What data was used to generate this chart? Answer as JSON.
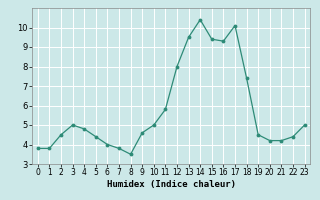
{
  "x": [
    0,
    1,
    2,
    3,
    4,
    5,
    6,
    7,
    8,
    9,
    10,
    11,
    12,
    13,
    14,
    15,
    16,
    17,
    18,
    19,
    20,
    21,
    22,
    23
  ],
  "y": [
    3.8,
    3.8,
    4.5,
    5.0,
    4.8,
    4.4,
    4.0,
    3.8,
    3.5,
    4.6,
    5.0,
    5.8,
    8.0,
    9.5,
    10.4,
    9.4,
    9.3,
    10.1,
    7.4,
    4.5,
    4.2,
    4.2,
    4.4,
    5.0
  ],
  "xlabel": "Humidex (Indice chaleur)",
  "xlim": [
    -0.5,
    23.5
  ],
  "ylim": [
    3,
    11
  ],
  "yticks": [
    3,
    4,
    5,
    6,
    7,
    8,
    9,
    10
  ],
  "xticks": [
    0,
    1,
    2,
    3,
    4,
    5,
    6,
    7,
    8,
    9,
    10,
    11,
    12,
    13,
    14,
    15,
    16,
    17,
    18,
    19,
    20,
    21,
    22,
    23
  ],
  "line_color": "#2e8b77",
  "marker_color": "#2e8b77",
  "bg_color": "#cce8e8",
  "grid_color": "#ffffff",
  "axis_bg": "#cce8e8",
  "spine_color": "#888888"
}
